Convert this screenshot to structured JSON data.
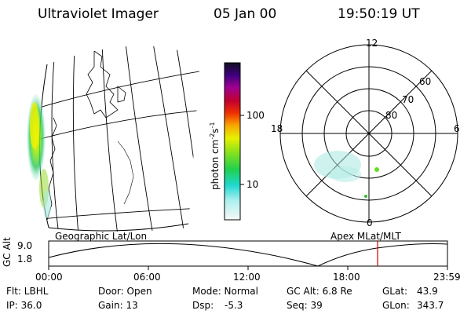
{
  "header": {
    "instrument": "Ultraviolet Imager",
    "date": "05 Jan 00",
    "time": "19:50:19 UT"
  },
  "colorbar": {
    "unit_label": "photon cm",
    "exp1": "-2",
    "unit_s": "s",
    "exp2": "-1",
    "ticks": [
      {
        "label": "100",
        "value": 100
      },
      {
        "label": "10",
        "value": 10
      }
    ]
  },
  "polar_plot": {
    "mlt_labels": {
      "top": "12",
      "left": "18",
      "right": "6",
      "bottom": "0"
    },
    "lat_labels": [
      "60",
      "70",
      "80"
    ]
  },
  "panel_labels": {
    "left": "Geographic Lat/Lon",
    "right": "Apex MLat/MLT"
  },
  "altitude_plot": {
    "axis_label": "GC Alt",
    "y_ticks": [
      "9.0",
      "1.8"
    ],
    "x_ticks": [
      "00:00",
      "06:00",
      "12:00",
      "18:00",
      "23:59"
    ],
    "marker_color": "#cc0000"
  },
  "info": {
    "row1": {
      "flt": "Flt: LBHL",
      "door": "Door: Open",
      "mode": "Mode: Normal",
      "gcalt": "GC Alt: 6.8 Re",
      "glat_label": "GLat:",
      "glat_value": "43.9"
    },
    "row2": {
      "ip": "IP: 36.0",
      "gain": "Gain: 13",
      "dsp_label": "Dsp:",
      "dsp_value": "-5.3",
      "seq": "Seq: 39",
      "glon_label": "GLon:",
      "glon_value": "343.7"
    }
  }
}
